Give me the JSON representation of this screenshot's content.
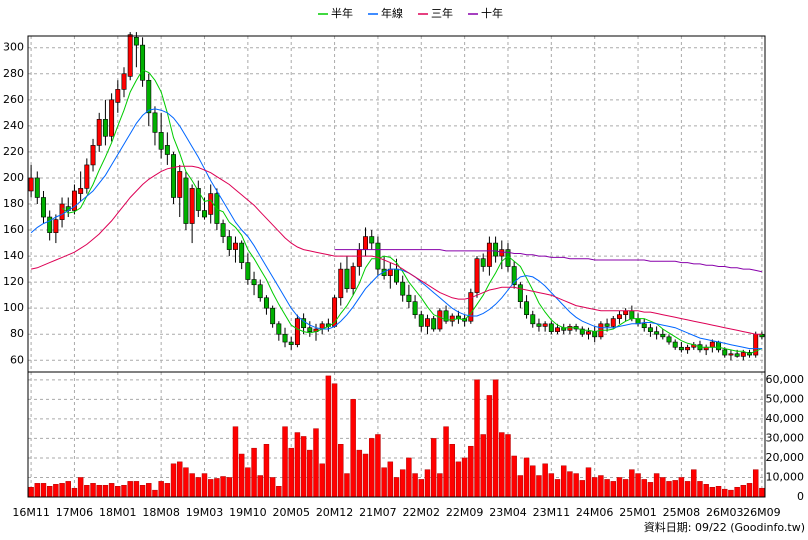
{
  "chart_data": {
    "type": "candlestick",
    "categories": [
      "16M11",
      null,
      null,
      null,
      null,
      null,
      null,
      "17M06",
      null,
      null,
      null,
      null,
      null,
      null,
      "18M01",
      null,
      null,
      null,
      null,
      null,
      null,
      "18M08",
      null,
      null,
      null,
      null,
      null,
      null,
      "19M03",
      null,
      null,
      null,
      null,
      null,
      null,
      "19M10",
      null,
      null,
      null,
      null,
      null,
      null,
      "20M05",
      null,
      null,
      null,
      null,
      null,
      null,
      "20M12",
      null,
      null,
      null,
      null,
      null,
      null,
      "21M07",
      null,
      null,
      null,
      null,
      null,
      null,
      "22M02",
      null,
      null,
      null,
      null,
      null,
      null,
      "22M09",
      null,
      null,
      null,
      null,
      null,
      null,
      "23M04",
      null,
      null,
      null,
      null,
      null,
      null,
      "23M11",
      null,
      null,
      null,
      null,
      null,
      null,
      "24M06",
      null,
      null,
      null,
      null,
      null,
      null,
      "25M01",
      null,
      null,
      null,
      null,
      null,
      null,
      "25M08",
      null,
      null,
      null,
      null,
      null,
      null,
      "26M03",
      null,
      null,
      null,
      null,
      null,
      "26M09"
    ],
    "open": [
      190,
      200,
      185,
      170,
      158,
      168,
      178,
      175,
      188,
      192,
      210,
      225,
      245,
      232,
      258,
      268,
      278,
      308,
      302,
      275,
      250,
      235,
      225,
      218,
      185,
      200,
      165,
      192,
      175,
      172,
      188,
      165,
      155,
      145,
      150,
      135,
      122,
      118,
      108,
      100,
      88,
      80,
      74,
      72,
      92,
      85,
      82,
      84,
      88,
      86,
      108,
      130,
      115,
      132,
      145,
      155,
      150,
      130,
      125,
      130,
      120,
      110,
      105,
      95,
      86,
      92,
      84,
      98,
      90,
      94,
      92,
      90,
      112,
      138,
      132,
      150,
      140,
      145,
      132,
      118,
      105,
      95,
      88,
      86,
      88,
      82,
      85,
      83,
      86,
      84,
      80,
      82,
      78,
      88,
      86,
      92,
      95,
      98,
      92,
      88,
      85,
      82,
      80,
      78,
      74,
      70,
      68,
      70,
      72,
      68,
      70,
      74,
      68,
      64,
      65,
      63,
      66,
      64,
      80
    ],
    "high": [
      210,
      205,
      190,
      175,
      172,
      185,
      185,
      195,
      205,
      215,
      230,
      250,
      260,
      265,
      275,
      285,
      312,
      312,
      308,
      280,
      255,
      250,
      235,
      220,
      210,
      205,
      195,
      198,
      185,
      195,
      192,
      168,
      160,
      155,
      152,
      142,
      128,
      122,
      110,
      102,
      90,
      85,
      78,
      95,
      96,
      90,
      88,
      90,
      92,
      110,
      135,
      140,
      135,
      150,
      162,
      160,
      155,
      140,
      135,
      138,
      125,
      118,
      110,
      98,
      95,
      94,
      100,
      102,
      96,
      98,
      95,
      115,
      140,
      142,
      155,
      155,
      152,
      150,
      136,
      120,
      110,
      98,
      92,
      90,
      90,
      88,
      88,
      88,
      88,
      86,
      85,
      86,
      90,
      92,
      94,
      98,
      100,
      102,
      96,
      92,
      88,
      86,
      84,
      80,
      76,
      74,
      72,
      74,
      75,
      72,
      76,
      75,
      70,
      68,
      68,
      68,
      68,
      82,
      82
    ],
    "low": [
      185,
      180,
      165,
      152,
      150,
      162,
      170,
      172,
      182,
      188,
      205,
      220,
      225,
      228,
      250,
      262,
      275,
      285,
      270,
      240,
      225,
      215,
      210,
      180,
      170,
      160,
      150,
      170,
      168,
      165,
      160,
      150,
      140,
      135,
      130,
      118,
      110,
      105,
      95,
      85,
      75,
      70,
      68,
      70,
      80,
      78,
      75,
      80,
      82,
      85,
      102,
      112,
      110,
      125,
      140,
      145,
      125,
      122,
      115,
      118,
      105,
      100,
      92,
      82,
      80,
      82,
      82,
      88,
      86,
      88,
      86,
      88,
      108,
      128,
      125,
      135,
      130,
      128,
      115,
      100,
      92,
      85,
      82,
      82,
      80,
      80,
      80,
      80,
      82,
      78,
      76,
      74,
      76,
      82,
      84,
      88,
      90,
      90,
      86,
      82,
      78,
      76,
      76,
      72,
      68,
      66,
      65,
      68,
      66,
      64,
      66,
      66,
      62,
      60,
      62,
      60,
      62,
      62,
      76
    ],
    "close": [
      200,
      185,
      170,
      158,
      168,
      180,
      175,
      190,
      192,
      210,
      225,
      245,
      232,
      260,
      268,
      280,
      310,
      302,
      275,
      250,
      235,
      222,
      218,
      185,
      205,
      165,
      192,
      175,
      170,
      188,
      165,
      155,
      145,
      150,
      135,
      122,
      118,
      108,
      100,
      88,
      80,
      74,
      72,
      92,
      85,
      82,
      84,
      88,
      86,
      108,
      130,
      115,
      132,
      145,
      155,
      150,
      130,
      125,
      130,
      120,
      110,
      105,
      95,
      86,
      92,
      84,
      98,
      90,
      94,
      92,
      90,
      112,
      138,
      132,
      150,
      140,
      145,
      132,
      118,
      105,
      95,
      88,
      86,
      88,
      82,
      85,
      83,
      86,
      84,
      80,
      82,
      78,
      88,
      86,
      92,
      95,
      98,
      92,
      88,
      85,
      82,
      80,
      78,
      74,
      70,
      68,
      70,
      72,
      68,
      70,
      74,
      68,
      64,
      65,
      63,
      66,
      64,
      80,
      78
    ],
    "up_color": "#ff0000",
    "down_color": "#00b000",
    "ylim": [
      51,
      309
    ],
    "yticks": [
      60,
      80,
      100,
      120,
      140,
      160,
      180,
      200,
      220,
      240,
      260,
      280,
      300
    ],
    "grid": true,
    "series": [
      {
        "name": "半年",
        "color": "#00cc00",
        "values": [
          null,
          null,
          null,
          null,
          null,
          177,
          173,
          174,
          177,
          186,
          195,
          206,
          216,
          227,
          240,
          252,
          266,
          275,
          283,
          281,
          275,
          266,
          250,
          231,
          219,
          205,
          198,
          190,
          182,
          183,
          176,
          174,
          166,
          162,
          156,
          145,
          138,
          130,
          122,
          112,
          103,
          95,
          87,
          84,
          82,
          81,
          82,
          84,
          86,
          89,
          96,
          102,
          110,
          119,
          131,
          138,
          138,
          140,
          139,
          135,
          128,
          120,
          114,
          108,
          101,
          95,
          93,
          91,
          91,
          92,
          91,
          96,
          103,
          110,
          119,
          127,
          136,
          140,
          136,
          132,
          123,
          114,
          104,
          97,
          91,
          87,
          85,
          85,
          85,
          83,
          83,
          82,
          83,
          83,
          84,
          87,
          90,
          92,
          92,
          92,
          90,
          88,
          84,
          81,
          78,
          75,
          73,
          72,
          70,
          70,
          70,
          70,
          69,
          68,
          67,
          67,
          65,
          67,
          69
        ]
      },
      {
        "name": "年線",
        "color": "#0066ff",
        "values": [
          158,
          162,
          165,
          167,
          170,
          172,
          175,
          178,
          182,
          186,
          190,
          196,
          202,
          210,
          218,
          226,
          234,
          242,
          248,
          252,
          253,
          252,
          250,
          246,
          240,
          232,
          224,
          216,
          207,
          198,
          190,
          182,
          174,
          166,
          160,
          155,
          148,
          140,
          132,
          124,
          116,
          108,
          100,
          94,
          90,
          87,
          85,
          84,
          84,
          86,
          90,
          95,
          101,
          108,
          115,
          120,
          125,
          128,
          130,
          130,
          129,
          127,
          124,
          120,
          116,
          112,
          108,
          104,
          100,
          97,
          95,
          94,
          94,
          96,
          99,
          103,
          108,
          114,
          120,
          124,
          125,
          124,
          121,
          117,
          112,
          107,
          102,
          97,
          93,
          90,
          88,
          86,
          85,
          85,
          85,
          86,
          87,
          88,
          88,
          89,
          89,
          88,
          87,
          86,
          85,
          83,
          81,
          79,
          77,
          76,
          75,
          74,
          73,
          72,
          71,
          70,
          69,
          69,
          69
        ]
      },
      {
        "name": "三年",
        "color": "#dd0055",
        "values": [
          130,
          131,
          133,
          135,
          137,
          139,
          141,
          143,
          146,
          149,
          153,
          157,
          162,
          167,
          173,
          179,
          185,
          190,
          195,
          199,
          202,
          205,
          207,
          208,
          209,
          209,
          209,
          208,
          206,
          204,
          201,
          198,
          195,
          191,
          187,
          183,
          179,
          174,
          169,
          164,
          159,
          154,
          150,
          147,
          145,
          144,
          143,
          142,
          141,
          140,
          140,
          140,
          140,
          140,
          140,
          140,
          139,
          137,
          135,
          133,
          130,
          127,
          124,
          121,
          118,
          115,
          112,
          110,
          108,
          107,
          107,
          108,
          110,
          112,
          114,
          115,
          116,
          116,
          116,
          115,
          114,
          113,
          112,
          111,
          110,
          108,
          106,
          104,
          102,
          101,
          100,
          99,
          98,
          98,
          98,
          98,
          98,
          98,
          98,
          97,
          97,
          96,
          95,
          94,
          93,
          92,
          91,
          90,
          89,
          88,
          87,
          86,
          85,
          84,
          83,
          82,
          81,
          80,
          80
        ]
      },
      {
        "name": "十年",
        "color": "#8800aa",
        "values": [
          null,
          null,
          null,
          null,
          null,
          null,
          null,
          null,
          null,
          null,
          null,
          null,
          null,
          null,
          null,
          null,
          null,
          null,
          null,
          null,
          null,
          null,
          null,
          null,
          null,
          null,
          null,
          null,
          null,
          null,
          null,
          null,
          null,
          null,
          null,
          null,
          null,
          null,
          null,
          null,
          null,
          null,
          null,
          null,
          null,
          null,
          null,
          null,
          null,
          145,
          145,
          145,
          145,
          145,
          145,
          145,
          145,
          145,
          145,
          145,
          145,
          145,
          145,
          145,
          145,
          145,
          145,
          144,
          144,
          144,
          144,
          144,
          144,
          144,
          144,
          144,
          143,
          143,
          142,
          142,
          141,
          141,
          140,
          140,
          139,
          139,
          139,
          138,
          138,
          138,
          138,
          137,
          137,
          137,
          137,
          137,
          137,
          137,
          137,
          137,
          136,
          136,
          136,
          136,
          136,
          135,
          135,
          134,
          134,
          133,
          133,
          132,
          132,
          131,
          131,
          130,
          130,
          129,
          128
        ]
      }
    ],
    "volume": {
      "color": "#ff0000",
      "values": [
        5000,
        7000,
        7000,
        5500,
        6500,
        7000,
        8000,
        4500,
        10000,
        6000,
        7000,
        6000,
        6000,
        7000,
        5500,
        6000,
        8000,
        8000,
        6000,
        7000,
        3500,
        8000,
        7000,
        17000,
        18000,
        15000,
        12000,
        10000,
        12000,
        9000,
        9500,
        10500,
        10000,
        36000,
        22000,
        15000,
        25000,
        11000,
        27000,
        10000,
        5500,
        36000,
        25000,
        33000,
        31000,
        24000,
        35000,
        17000,
        62000,
        58000,
        27000,
        12000,
        50000,
        24000,
        22000,
        30000,
        32000,
        15000,
        18000,
        10000,
        14000,
        20000,
        12000,
        9000,
        14000,
        30000,
        12000,
        36000,
        27000,
        18000,
        20000,
        26000,
        60000,
        32000,
        52000,
        60000,
        33000,
        32000,
        21000,
        11000,
        20000,
        16000,
        11000,
        17000,
        12000,
        9000,
        16000,
        13000,
        12000,
        8500,
        15000,
        10000,
        11000,
        9000,
        8000,
        10000,
        9000,
        14000,
        12000,
        9000,
        7500,
        12000,
        10000,
        8000,
        8500,
        10000,
        8000,
        14000,
        8000,
        6500,
        5000,
        5500,
        4000,
        3500,
        5000,
        6000,
        7000,
        14000,
        4500
      ],
      "ylim": [
        0,
        64000
      ],
      "yticks": [
        0,
        {
          "value": 10000,
          "label": "10,000"
        },
        {
          "value": 20000,
          "label": "20,000"
        },
        {
          "value": 30000,
          "label": "30,000"
        },
        {
          "value": 40000,
          "label": "40,000"
        },
        {
          "value": 50000,
          "label": "50,000"
        },
        {
          "value": 60000,
          "label": "60,000"
        }
      ]
    }
  },
  "footer": "資料日期: 09/22 (Goodinfo.tw)"
}
